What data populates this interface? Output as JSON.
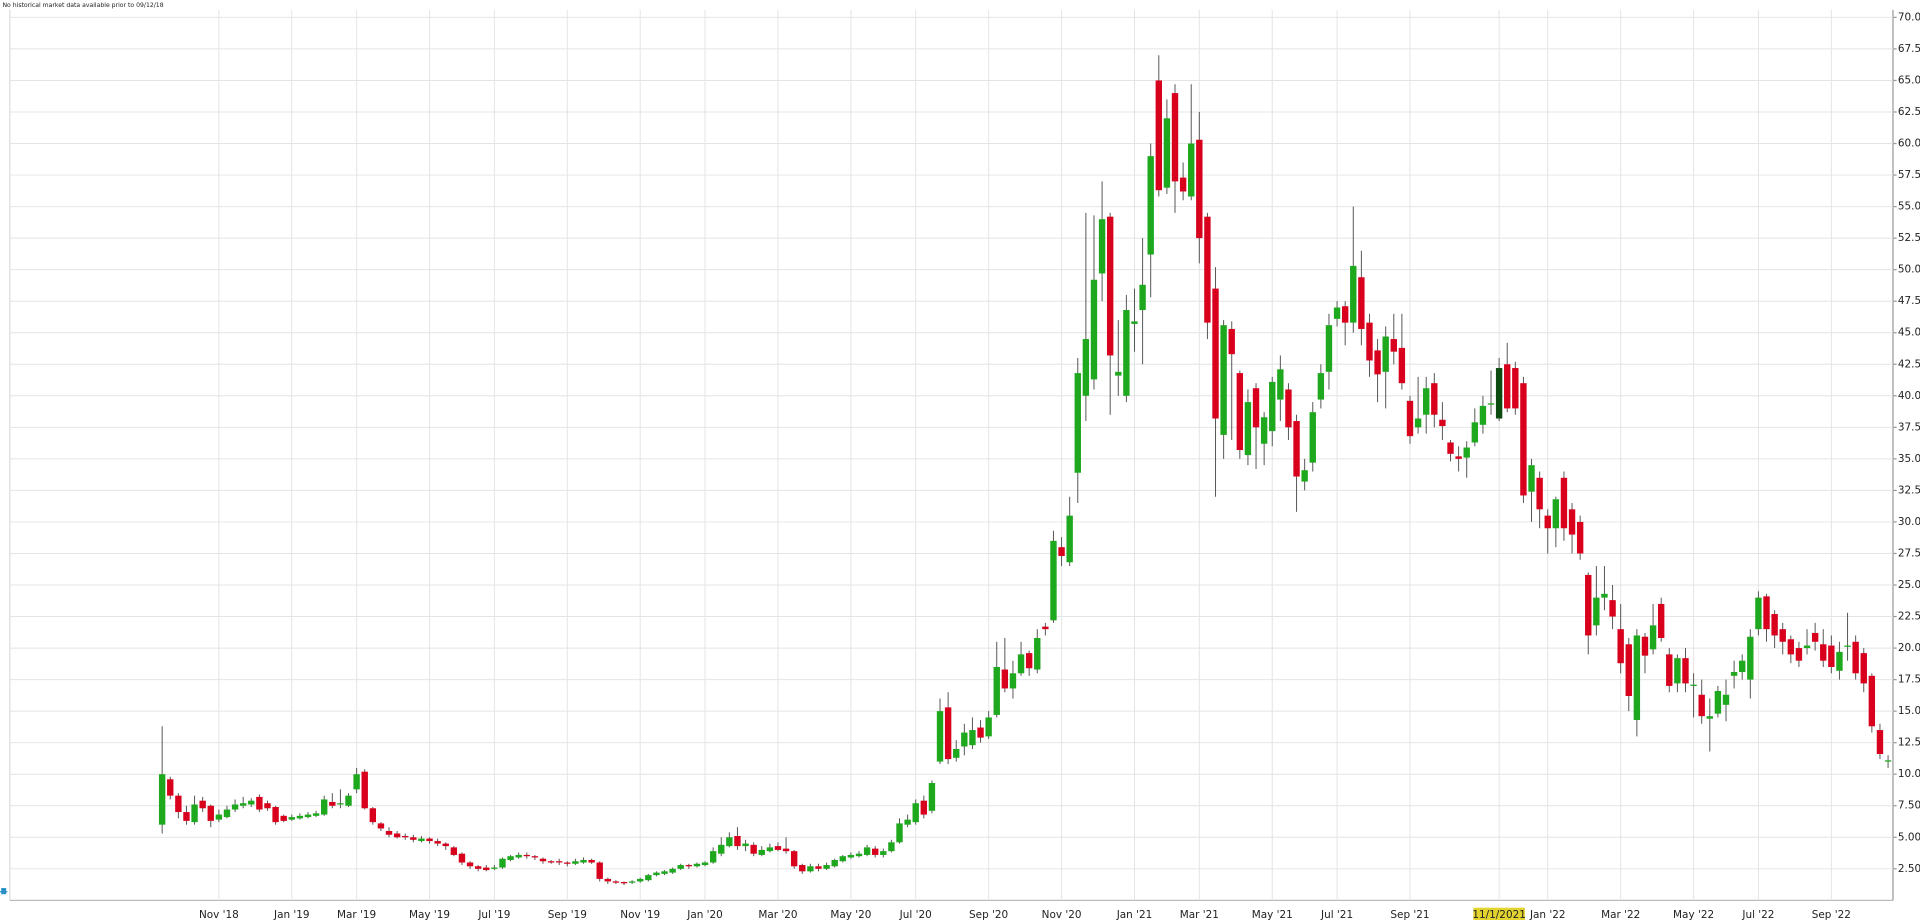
{
  "chart_data": {
    "type": "candlestick",
    "note": "No historical market data available prior to 09/12/18",
    "up_color": "#1ea81e",
    "down_color": "#d8001c",
    "highlight_color": "#0c4c10",
    "highlight_label_color": "#e2d32e",
    "highlight_index": 165,
    "grid": true,
    "ylim": [
      0,
      70.6
    ],
    "yticks": [
      {
        "value": 2.5,
        "label": "2.50"
      },
      {
        "value": 5,
        "label": "5.00"
      },
      {
        "value": 7.5,
        "label": "7.50"
      },
      {
        "value": 10,
        "label": "10.00"
      },
      {
        "value": 12.5,
        "label": "12.50"
      },
      {
        "value": 15,
        "label": "15.00"
      },
      {
        "value": 17.5,
        "label": "17.50"
      },
      {
        "value": 20,
        "label": "20.00"
      },
      {
        "value": 22.5,
        "label": "22.50"
      },
      {
        "value": 25,
        "label": "25.00"
      },
      {
        "value": 27.5,
        "label": "27.50"
      },
      {
        "value": 30,
        "label": "30.00"
      },
      {
        "value": 32.5,
        "label": "32.50"
      },
      {
        "value": 35,
        "label": "35.00"
      },
      {
        "value": 37.5,
        "label": "37.50"
      },
      {
        "value": 40,
        "label": "40.00"
      },
      {
        "value": 42.5,
        "label": "42.50"
      },
      {
        "value": 45,
        "label": "45.00"
      },
      {
        "value": 47.5,
        "label": "47.50"
      },
      {
        "value": 50,
        "label": "50.00"
      },
      {
        "value": 52.5,
        "label": "52.50"
      },
      {
        "value": 55,
        "label": "55.00"
      },
      {
        "value": 57.5,
        "label": "57.50"
      },
      {
        "value": 60,
        "label": "60.00"
      },
      {
        "value": 62.5,
        "label": "62.50"
      },
      {
        "value": 65,
        "label": "65.00"
      },
      {
        "value": 67.5,
        "label": "67.50"
      },
      {
        "value": 70,
        "label": "70.00"
      }
    ],
    "categories": [
      null,
      null,
      null,
      null,
      null,
      null,
      null,
      "Nov '18",
      null,
      null,
      null,
      null,
      null,
      null,
      null,
      null,
      "Jan '19",
      null,
      null,
      null,
      null,
      null,
      null,
      null,
      "Mar '19",
      null,
      null,
      null,
      null,
      null,
      null,
      null,
      null,
      "May '19",
      null,
      null,
      null,
      null,
      null,
      null,
      null,
      "Jul '19",
      null,
      null,
      null,
      null,
      null,
      null,
      null,
      null,
      "Sep '19",
      null,
      null,
      null,
      null,
      null,
      null,
      null,
      null,
      "Nov '19",
      null,
      null,
      null,
      null,
      null,
      null,
      null,
      "Jan '20",
      null,
      null,
      null,
      null,
      null,
      null,
      null,
      null,
      "Mar '20",
      null,
      null,
      null,
      null,
      null,
      null,
      null,
      null,
      "May '20",
      null,
      null,
      null,
      null,
      null,
      null,
      null,
      "Jul '20",
      null,
      null,
      null,
      null,
      null,
      null,
      null,
      null,
      "Sep '20",
      null,
      null,
      null,
      null,
      null,
      null,
      null,
      null,
      "Nov '20",
      null,
      null,
      null,
      null,
      null,
      null,
      null,
      null,
      "Jan '21",
      null,
      null,
      null,
      null,
      null,
      null,
      null,
      "Mar '21",
      null,
      null,
      null,
      null,
      null,
      null,
      null,
      null,
      "May '21",
      null,
      null,
      null,
      null,
      null,
      null,
      null,
      "Jul '21",
      null,
      null,
      null,
      null,
      null,
      null,
      null,
      null,
      "Sep '21",
      null,
      null,
      null,
      null,
      null,
      null,
      null,
      null,
      null,
      null,
      "11/1/2021",
      null,
      null,
      null,
      null,
      null,
      "Jan '22",
      null,
      null,
      null,
      null,
      null,
      null,
      null,
      null,
      "Mar '22",
      null,
      null,
      null,
      null,
      null,
      null,
      null,
      null,
      "May '22",
      null,
      null,
      null,
      null,
      null,
      null,
      null,
      "Jul '22",
      null,
      null,
      null,
      null,
      null,
      null,
      null,
      null,
      "Sep '22",
      null,
      null,
      null,
      null,
      null,
      null,
      null
    ],
    "ohlc": [
      [
        6,
        13.8,
        5.3,
        10
      ],
      [
        9.6,
        9.8,
        8,
        8.3
      ],
      [
        8.3,
        8.5,
        6.5,
        7
      ],
      [
        7,
        7.5,
        6,
        6.3
      ],
      [
        6.2,
        8.3,
        6,
        7.6
      ],
      [
        7.9,
        8.2,
        7,
        7.3
      ],
      [
        7.5,
        7.6,
        5.8,
        6.3
      ],
      [
        6.4,
        7.2,
        6.2,
        6.8
      ],
      [
        6.6,
        7.5,
        6.5,
        7.2
      ],
      [
        7.2,
        8,
        7,
        7.6
      ],
      [
        7.5,
        8.2,
        7.3,
        7.7
      ],
      [
        7.6,
        8.1,
        7.4,
        7.9
      ],
      [
        8.2,
        8.4,
        7,
        7.2
      ],
      [
        7.7,
        7.9,
        7.1,
        7.3
      ],
      [
        7.4,
        7.5,
        6,
        6.2
      ],
      [
        6.7,
        6.8,
        6.2,
        6.3
      ],
      [
        6.4,
        6.8,
        6.3,
        6.6
      ],
      [
        6.5,
        6.9,
        6.4,
        6.7
      ],
      [
        6.6,
        7,
        6.5,
        6.8
      ],
      [
        6.7,
        7.1,
        6.6,
        6.9
      ],
      [
        6.8,
        8.3,
        6.7,
        8
      ],
      [
        7.8,
        8.5,
        7.3,
        7.5
      ],
      [
        7.6,
        8.8,
        7.3,
        7.7
      ],
      [
        7.5,
        8.5,
        7.4,
        8.3
      ],
      [
        8.8,
        10.5,
        8.5,
        10
      ],
      [
        10.2,
        10.4,
        7.2,
        7.3
      ],
      [
        7.3,
        7.4,
        6,
        6.2
      ],
      [
        6.1,
        6.2,
        5.5,
        5.7
      ],
      [
        5.5,
        5.8,
        5,
        5.2
      ],
      [
        5.3,
        5.5,
        4.9,
        5
      ],
      [
        5.1,
        5.3,
        4.8,
        5
      ],
      [
        5,
        5.2,
        4.6,
        4.8
      ],
      [
        4.7,
        5.1,
        4.6,
        4.9
      ],
      [
        4.9,
        5,
        4.5,
        4.7
      ],
      [
        4.7,
        4.9,
        4.3,
        4.5
      ],
      [
        4.5,
        4.6,
        4,
        4.3
      ],
      [
        4.2,
        4.3,
        3.5,
        3.6
      ],
      [
        3.7,
        3.8,
        2.8,
        3
      ],
      [
        3,
        3.1,
        2.5,
        2.7
      ],
      [
        2.7,
        2.8,
        2.3,
        2.5
      ],
      [
        2.6,
        2.8,
        2.3,
        2.4
      ],
      [
        2.5,
        2.8,
        2.4,
        2.6
      ],
      [
        2.6,
        3.4,
        2.5,
        3.3
      ],
      [
        3.2,
        3.6,
        3.1,
        3.5
      ],
      [
        3.4,
        3.8,
        3.3,
        3.6
      ],
      [
        3.6,
        3.8,
        3.3,
        3.5
      ],
      [
        3.5,
        3.6,
        3.2,
        3.4
      ],
      [
        3.3,
        3.4,
        2.9,
        3.1
      ],
      [
        3.1,
        3.2,
        2.9,
        3
      ],
      [
        3.1,
        3.3,
        2.8,
        3
      ],
      [
        3,
        3.1,
        2.7,
        2.9
      ],
      [
        2.9,
        3.3,
        2.8,
        3.1
      ],
      [
        3,
        3.4,
        2.9,
        3.2
      ],
      [
        3.2,
        3.3,
        2.9,
        3
      ],
      [
        3,
        3.1,
        1.5,
        1.7
      ],
      [
        1.7,
        1.8,
        1.3,
        1.5
      ],
      [
        1.5,
        1.6,
        1.3,
        1.4
      ],
      [
        1.45,
        1.5,
        1.2,
        1.35
      ],
      [
        1.4,
        1.6,
        1.3,
        1.5
      ],
      [
        1.5,
        1.8,
        1.4,
        1.7
      ],
      [
        1.6,
        2.1,
        1.5,
        2
      ],
      [
        2,
        2.3,
        1.9,
        2.2
      ],
      [
        2.1,
        2.4,
        2,
        2.3
      ],
      [
        2.2,
        2.6,
        2.1,
        2.5
      ],
      [
        2.5,
        2.9,
        2.4,
        2.8
      ],
      [
        2.8,
        2.9,
        2.5,
        2.7
      ],
      [
        2.7,
        3,
        2.6,
        2.9
      ],
      [
        2.8,
        3.1,
        2.7,
        3
      ],
      [
        3,
        4.2,
        2.9,
        3.9
      ],
      [
        3.7,
        5,
        3.5,
        4.4
      ],
      [
        4.3,
        5.4,
        4.2,
        5
      ],
      [
        5.1,
        5.8,
        4,
        4.3
      ],
      [
        4.3,
        4.8,
        3.9,
        4.5
      ],
      [
        4.4,
        4.6,
        3.5,
        3.7
      ],
      [
        3.6,
        4.3,
        3.5,
        4
      ],
      [
        3.9,
        4.5,
        3.8,
        4.2
      ],
      [
        4.3,
        4.6,
        3.9,
        4
      ],
      [
        4.1,
        5,
        3.7,
        3.9
      ],
      [
        3.9,
        4,
        2.5,
        2.7
      ],
      [
        2.8,
        2.9,
        2.1,
        2.3
      ],
      [
        2.3,
        2.9,
        2.2,
        2.7
      ],
      [
        2.7,
        2.9,
        2.3,
        2.5
      ],
      [
        2.5,
        3,
        2.4,
        2.8
      ],
      [
        2.7,
        3.3,
        2.6,
        3.2
      ],
      [
        3.1,
        3.6,
        3,
        3.5
      ],
      [
        3.4,
        3.8,
        3.3,
        3.6
      ],
      [
        3.5,
        3.9,
        3.4,
        3.7
      ],
      [
        3.6,
        4.4,
        3.5,
        4.2
      ],
      [
        4.1,
        4.3,
        3.4,
        3.6
      ],
      [
        3.6,
        4.1,
        3.4,
        3.9
      ],
      [
        3.9,
        4.8,
        3.8,
        4.6
      ],
      [
        4.6,
        6.5,
        4.5,
        6.1
      ],
      [
        6,
        6.8,
        5.8,
        6.4
      ],
      [
        6.2,
        8,
        6,
        7.7
      ],
      [
        7.9,
        8.3,
        6.5,
        6.8
      ],
      [
        7.1,
        9.5,
        6.9,
        9.3
      ],
      [
        11,
        16,
        10.8,
        15
      ],
      [
        15.3,
        16.5,
        10.8,
        11.2
      ],
      [
        11.3,
        12.7,
        11,
        12
      ],
      [
        12.2,
        14,
        11.5,
        13.3
      ],
      [
        12.3,
        14.5,
        12,
        13.5
      ],
      [
        13.7,
        14.3,
        12.5,
        12.9
      ],
      [
        13,
        15,
        12.8,
        14.5
      ],
      [
        14.7,
        20.5,
        14.5,
        18.5
      ],
      [
        18.3,
        20.8,
        16.5,
        16.8
      ],
      [
        16.8,
        19,
        16,
        18
      ],
      [
        18,
        20.5,
        17.8,
        19.5
      ],
      [
        19.6,
        19.8,
        17.8,
        18.4
      ],
      [
        18.3,
        21.5,
        18,
        20.8
      ],
      [
        21.7,
        22,
        21,
        21.5
      ],
      [
        22.2,
        29.3,
        22,
        28.5
      ],
      [
        28,
        28.8,
        26.5,
        27.3
      ],
      [
        26.8,
        32,
        26.5,
        30.5
      ],
      [
        33.9,
        43,
        31.5,
        41.8
      ],
      [
        40,
        54.5,
        38,
        44.5
      ],
      [
        41.3,
        54.3,
        40.5,
        49.2
      ],
      [
        49.7,
        57,
        47.5,
        54
      ],
      [
        54.2,
        54.5,
        38.5,
        43.2
      ],
      [
        41.6,
        46,
        40,
        41.9
      ],
      [
        40,
        48,
        39.5,
        46.8
      ],
      [
        45.7,
        48.5,
        43.5,
        45.9
      ],
      [
        46.8,
        52.5,
        42.5,
        48.8
      ],
      [
        51.2,
        60,
        47.8,
        59
      ],
      [
        65,
        67,
        55.8,
        56.3
      ],
      [
        56.5,
        63.5,
        56,
        62
      ],
      [
        64,
        64.7,
        54.5,
        57
      ],
      [
        57.3,
        58.5,
        55.5,
        56.2
      ],
      [
        55.8,
        64.7,
        55.5,
        60
      ],
      [
        60.3,
        62.5,
        50.5,
        52.5
      ],
      [
        54.2,
        54.5,
        44.5,
        45.8
      ],
      [
        48.5,
        50.2,
        32,
        38.2
      ],
      [
        36.9,
        46,
        35,
        45.6
      ],
      [
        45.3,
        45.9,
        36.5,
        43.3
      ],
      [
        41.8,
        42,
        35,
        35.7
      ],
      [
        35.3,
        40.5,
        34.5,
        39.5
      ],
      [
        40.6,
        41,
        34.2,
        37.5
      ],
      [
        36.2,
        38.7,
        34.5,
        38.3
      ],
      [
        37.2,
        41.5,
        36,
        41.1
      ],
      [
        39.7,
        43.2,
        38,
        42.1
      ],
      [
        40.5,
        41,
        36.5,
        37.5
      ],
      [
        38,
        38.5,
        30.8,
        33.6
      ],
      [
        33.2,
        35,
        32.5,
        34.1
      ],
      [
        34.7,
        39.5,
        34,
        38.7
      ],
      [
        39.7,
        42.5,
        39,
        41.8
      ],
      [
        41.9,
        46.5,
        40.5,
        45.6
      ],
      [
        46.1,
        47.5,
        45.5,
        47
      ],
      [
        47.1,
        47.5,
        44,
        45.8
      ],
      [
        45.8,
        55,
        45,
        50.3
      ],
      [
        49.4,
        51.5,
        44,
        45.3
      ],
      [
        45.8,
        46.5,
        41.5,
        42.8
      ],
      [
        43.6,
        44.5,
        39.5,
        41.7
      ],
      [
        41.9,
        45.5,
        39,
        44.7
      ],
      [
        44.5,
        46.5,
        42.5,
        43.5
      ],
      [
        43.8,
        46.5,
        40.5,
        41
      ],
      [
        39.6,
        40,
        36.2,
        36.8
      ],
      [
        37.5,
        41.5,
        37,
        38.2
      ],
      [
        38.5,
        41.5,
        37,
        40.6
      ],
      [
        41,
        41.8,
        37.5,
        38.5
      ],
      [
        38.1,
        39.5,
        36.5,
        37.6
      ],
      [
        36.3,
        36.5,
        34.8,
        35.4
      ],
      [
        35.2,
        36,
        34,
        35
      ],
      [
        35.1,
        36.4,
        33.5,
        35.9
      ],
      [
        36.3,
        39,
        36,
        37.9
      ],
      [
        37.7,
        40,
        37,
        39.2
      ],
      [
        39.3,
        42,
        38.5,
        39.4
      ],
      [
        38.2,
        43,
        38,
        42.2
      ],
      [
        42.5,
        44.2,
        38.7,
        39
      ],
      [
        42.2,
        42.7,
        38.5,
        39
      ],
      [
        41,
        41.5,
        31.5,
        32.1
      ],
      [
        32.4,
        35,
        30,
        34.5
      ],
      [
        33.5,
        34,
        29.5,
        31
      ],
      [
        30.5,
        31,
        27.5,
        29.5
      ],
      [
        29.5,
        32,
        28,
        31.8
      ],
      [
        33.5,
        34,
        28.5,
        29.5
      ],
      [
        31,
        31.5,
        27.5,
        29
      ],
      [
        30,
        30.5,
        27,
        27.5
      ],
      [
        25.8,
        26,
        19.5,
        21
      ],
      [
        21.8,
        26.5,
        21,
        24
      ],
      [
        24,
        26.5,
        23,
        24.3
      ],
      [
        23.8,
        25,
        21.5,
        22.5
      ],
      [
        21.5,
        23.5,
        18,
        18.8
      ],
      [
        20.3,
        20.8,
        15,
        16.2
      ],
      [
        14.3,
        21.5,
        13,
        21
      ],
      [
        20.9,
        21.2,
        18,
        19.4
      ],
      [
        19.9,
        23.5,
        19.5,
        21.8
      ],
      [
        23.5,
        24,
        20.5,
        20.8
      ],
      [
        19.5,
        20,
        16.5,
        17
      ],
      [
        17.2,
        19.5,
        16.5,
        19.2
      ],
      [
        19.2,
        20,
        16.5,
        17.2
      ],
      [
        17,
        18,
        14.5,
        17.1
      ],
      [
        16.3,
        17.5,
        14,
        14.6
      ],
      [
        14.4,
        16,
        11.8,
        14.6
      ],
      [
        14.8,
        17,
        14.5,
        16.6
      ],
      [
        15.5,
        17.5,
        14.2,
        16.3
      ],
      [
        17.8,
        19,
        16.8,
        18.1
      ],
      [
        18.1,
        19.5,
        17.5,
        19
      ],
      [
        17.5,
        21.5,
        16,
        20.9
      ],
      [
        21.5,
        24.5,
        21,
        24
      ],
      [
        24.1,
        24.3,
        20.5,
        21.5
      ],
      [
        22.7,
        23,
        20,
        21
      ],
      [
        21.5,
        22,
        19.5,
        20.5
      ],
      [
        20.7,
        21,
        18.8,
        19.5
      ],
      [
        20,
        20.5,
        18.5,
        19
      ],
      [
        20,
        21.5,
        19.5,
        20.2
      ],
      [
        21.2,
        22,
        19.8,
        20.5
      ],
      [
        20.3,
        21.5,
        18.5,
        19
      ],
      [
        20.2,
        21,
        18,
        18.5
      ],
      [
        18.2,
        20.5,
        17.5,
        19.7
      ],
      [
        20.1,
        22.8,
        19,
        20.2
      ],
      [
        20.5,
        21,
        17.5,
        18
      ],
      [
        19.6,
        20,
        16.5,
        17.2
      ],
      [
        17.8,
        18,
        13.3,
        13.8
      ],
      [
        13.5,
        14,
        11.2,
        11.6
      ],
      [
        11,
        11.5,
        10.5,
        11.1
      ]
    ]
  }
}
